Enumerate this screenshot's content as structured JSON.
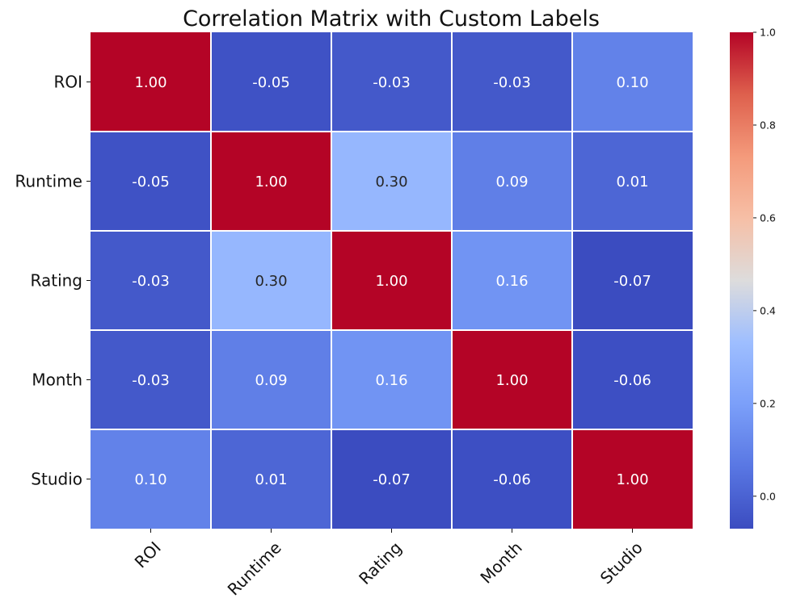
{
  "chart_data": {
    "type": "heatmap",
    "title": "Correlation Matrix with Custom Labels",
    "xlabel": "",
    "ylabel": "",
    "rows": [
      "ROI",
      "Runtime",
      "Rating",
      "Month",
      "Studio"
    ],
    "columns": [
      "ROI",
      "Runtime",
      "Rating",
      "Month",
      "Studio"
    ],
    "values": [
      [
        1.0,
        -0.05,
        -0.03,
        -0.03,
        0.1
      ],
      [
        -0.05,
        1.0,
        0.3,
        0.09,
        0.01
      ],
      [
        -0.03,
        0.3,
        1.0,
        0.16,
        -0.07
      ],
      [
        -0.03,
        0.09,
        0.16,
        1.0,
        -0.06
      ],
      [
        0.1,
        0.01,
        -0.07,
        -0.06,
        1.0
      ]
    ],
    "value_labels": [
      [
        "1.00",
        "-0.05",
        "-0.03",
        "-0.03",
        "0.10"
      ],
      [
        "-0.05",
        "1.00",
        "0.30",
        "0.09",
        "0.01"
      ],
      [
        "-0.03",
        "0.30",
        "1.00",
        "0.16",
        "-0.07"
      ],
      [
        "-0.03",
        "0.09",
        "0.16",
        "1.00",
        "-0.06"
      ],
      [
        "0.10",
        "0.01",
        "-0.07",
        "-0.06",
        "1.00"
      ]
    ],
    "colormap": "coolwarm",
    "colorbar": {
      "range": [
        -0.07,
        1.0
      ],
      "ticks": [
        0.0,
        0.2,
        0.4,
        0.6,
        0.8,
        1.0
      ],
      "tick_labels": [
        "0.0",
        "0.2",
        "0.4",
        "0.6",
        "0.8",
        "1.0"
      ]
    },
    "grid": true,
    "gridline_color": "#ffffff",
    "legend": "colorbar-right"
  }
}
